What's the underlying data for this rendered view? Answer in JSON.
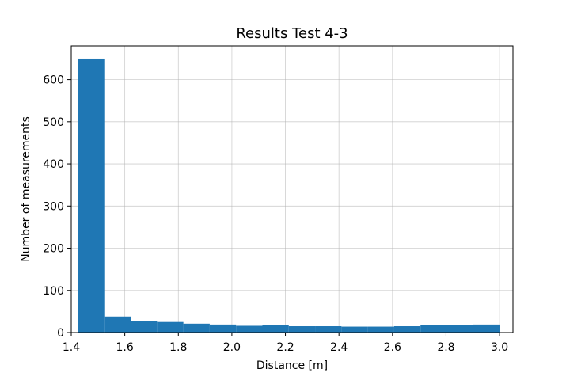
{
  "chart_data": {
    "type": "bar",
    "title": "Results Test 4-3",
    "xlabel": "Distance [m]",
    "ylabel": "Number of measurements",
    "xlim": [
      1.4,
      3.05
    ],
    "ylim": [
      0,
      680
    ],
    "xticks": [
      "1.4",
      "1.6",
      "1.8",
      "2.0",
      "2.2",
      "2.4",
      "2.6",
      "2.8",
      "3.0"
    ],
    "yticks": [
      "0",
      "100",
      "200",
      "300",
      "400",
      "500",
      "600"
    ],
    "grid": true,
    "color": "#1f77b4",
    "bins": [
      {
        "start": 1.425,
        "end": 1.5234,
        "count": 650
      },
      {
        "start": 1.5234,
        "end": 1.6219,
        "count": 38
      },
      {
        "start": 1.6219,
        "end": 1.7203,
        "count": 27
      },
      {
        "start": 1.7203,
        "end": 1.8188,
        "count": 25
      },
      {
        "start": 1.8188,
        "end": 1.9172,
        "count": 21
      },
      {
        "start": 1.9172,
        "end": 2.0156,
        "count": 19
      },
      {
        "start": 2.0156,
        "end": 2.1141,
        "count": 16
      },
      {
        "start": 2.1141,
        "end": 2.2125,
        "count": 17
      },
      {
        "start": 2.2125,
        "end": 2.3109,
        "count": 15
      },
      {
        "start": 2.3109,
        "end": 2.4094,
        "count": 15
      },
      {
        "start": 2.4094,
        "end": 2.5078,
        "count": 14
      },
      {
        "start": 2.5078,
        "end": 2.6063,
        "count": 14
      },
      {
        "start": 2.6063,
        "end": 2.7047,
        "count": 15
      },
      {
        "start": 2.7047,
        "end": 2.8031,
        "count": 17
      },
      {
        "start": 2.8031,
        "end": 2.9016,
        "count": 17
      },
      {
        "start": 2.9016,
        "end": 3.0,
        "count": 19
      }
    ]
  }
}
